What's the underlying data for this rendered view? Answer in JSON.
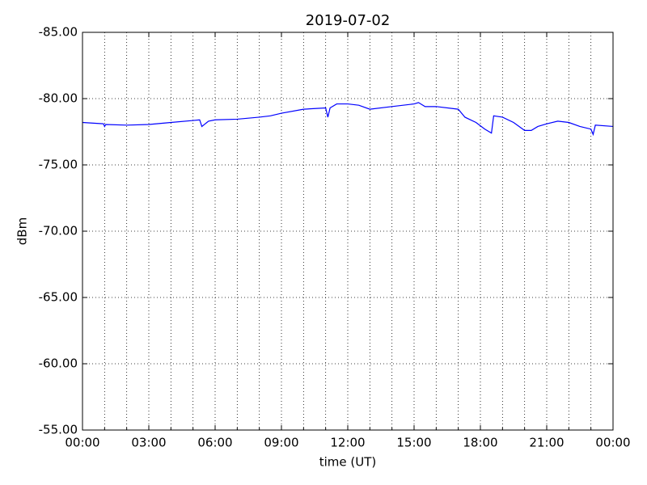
{
  "chart_data": {
    "type": "line",
    "title": "2019-07-02",
    "x_label": "time (UT)",
    "y_label": "dBm",
    "x": [
      0,
      0.5,
      0.95,
      1.0,
      1.05,
      2,
      3,
      4,
      5,
      5.3,
      5.4,
      5.7,
      6,
      7,
      8,
      8.5,
      9,
      10,
      11,
      11.1,
      11.2,
      11.5,
      12,
      12.5,
      13,
      14,
      15,
      15.2,
      15.5,
      16,
      17,
      17.3,
      17.8,
      18.2,
      18.5,
      18.6,
      19,
      19.5,
      20,
      20.3,
      20.6,
      21,
      21.5,
      22,
      22.5,
      23,
      23.1,
      23.2,
      24
    ],
    "series": [
      {
        "name": "dBm",
        "color": "#0000ff",
        "values": [
          -78.2,
          -78.15,
          -78.1,
          -77.9,
          -78.05,
          -78.0,
          -78.05,
          -78.2,
          -78.35,
          -78.4,
          -77.9,
          -78.3,
          -78.4,
          -78.45,
          -78.6,
          -78.7,
          -78.9,
          -79.2,
          -79.3,
          -78.6,
          -79.3,
          -79.6,
          -79.6,
          -79.5,
          -79.2,
          -79.4,
          -79.6,
          -79.7,
          -79.4,
          -79.4,
          -79.2,
          -78.6,
          -78.2,
          -77.7,
          -77.4,
          -78.7,
          -78.6,
          -78.2,
          -77.6,
          -77.6,
          -77.9,
          -78.1,
          -78.3,
          -78.2,
          -77.9,
          -77.7,
          -77.3,
          -78.0,
          -77.9
        ]
      }
    ],
    "xlim": [
      0,
      24
    ],
    "xticks": [
      {
        "value": 0,
        "label": "00:00"
      },
      {
        "value": 3,
        "label": "03:00"
      },
      {
        "value": 6,
        "label": "06:00"
      },
      {
        "value": 9,
        "label": "09:00"
      },
      {
        "value": 12,
        "label": "12:00"
      },
      {
        "value": 15,
        "label": "15:00"
      },
      {
        "value": 18,
        "label": "18:00"
      },
      {
        "value": 21,
        "label": "21:00"
      },
      {
        "value": 24,
        "label": "00:00"
      }
    ],
    "xminorticks": [
      1,
      2,
      4,
      5,
      7,
      8,
      10,
      11,
      13,
      14,
      16,
      17,
      19,
      20,
      22,
      23
    ],
    "ylim": [
      -55,
      -85
    ],
    "yticks": [
      {
        "value": -85,
        "label": "-85.00"
      },
      {
        "value": -80,
        "label": "-80.00"
      },
      {
        "value": -75,
        "label": "-75.00"
      },
      {
        "value": -70,
        "label": "-70.00"
      },
      {
        "value": -65,
        "label": "-65.00"
      },
      {
        "value": -60,
        "label": "-60.00"
      },
      {
        "value": -55,
        "label": "-55.00"
      }
    ],
    "grid": true
  }
}
